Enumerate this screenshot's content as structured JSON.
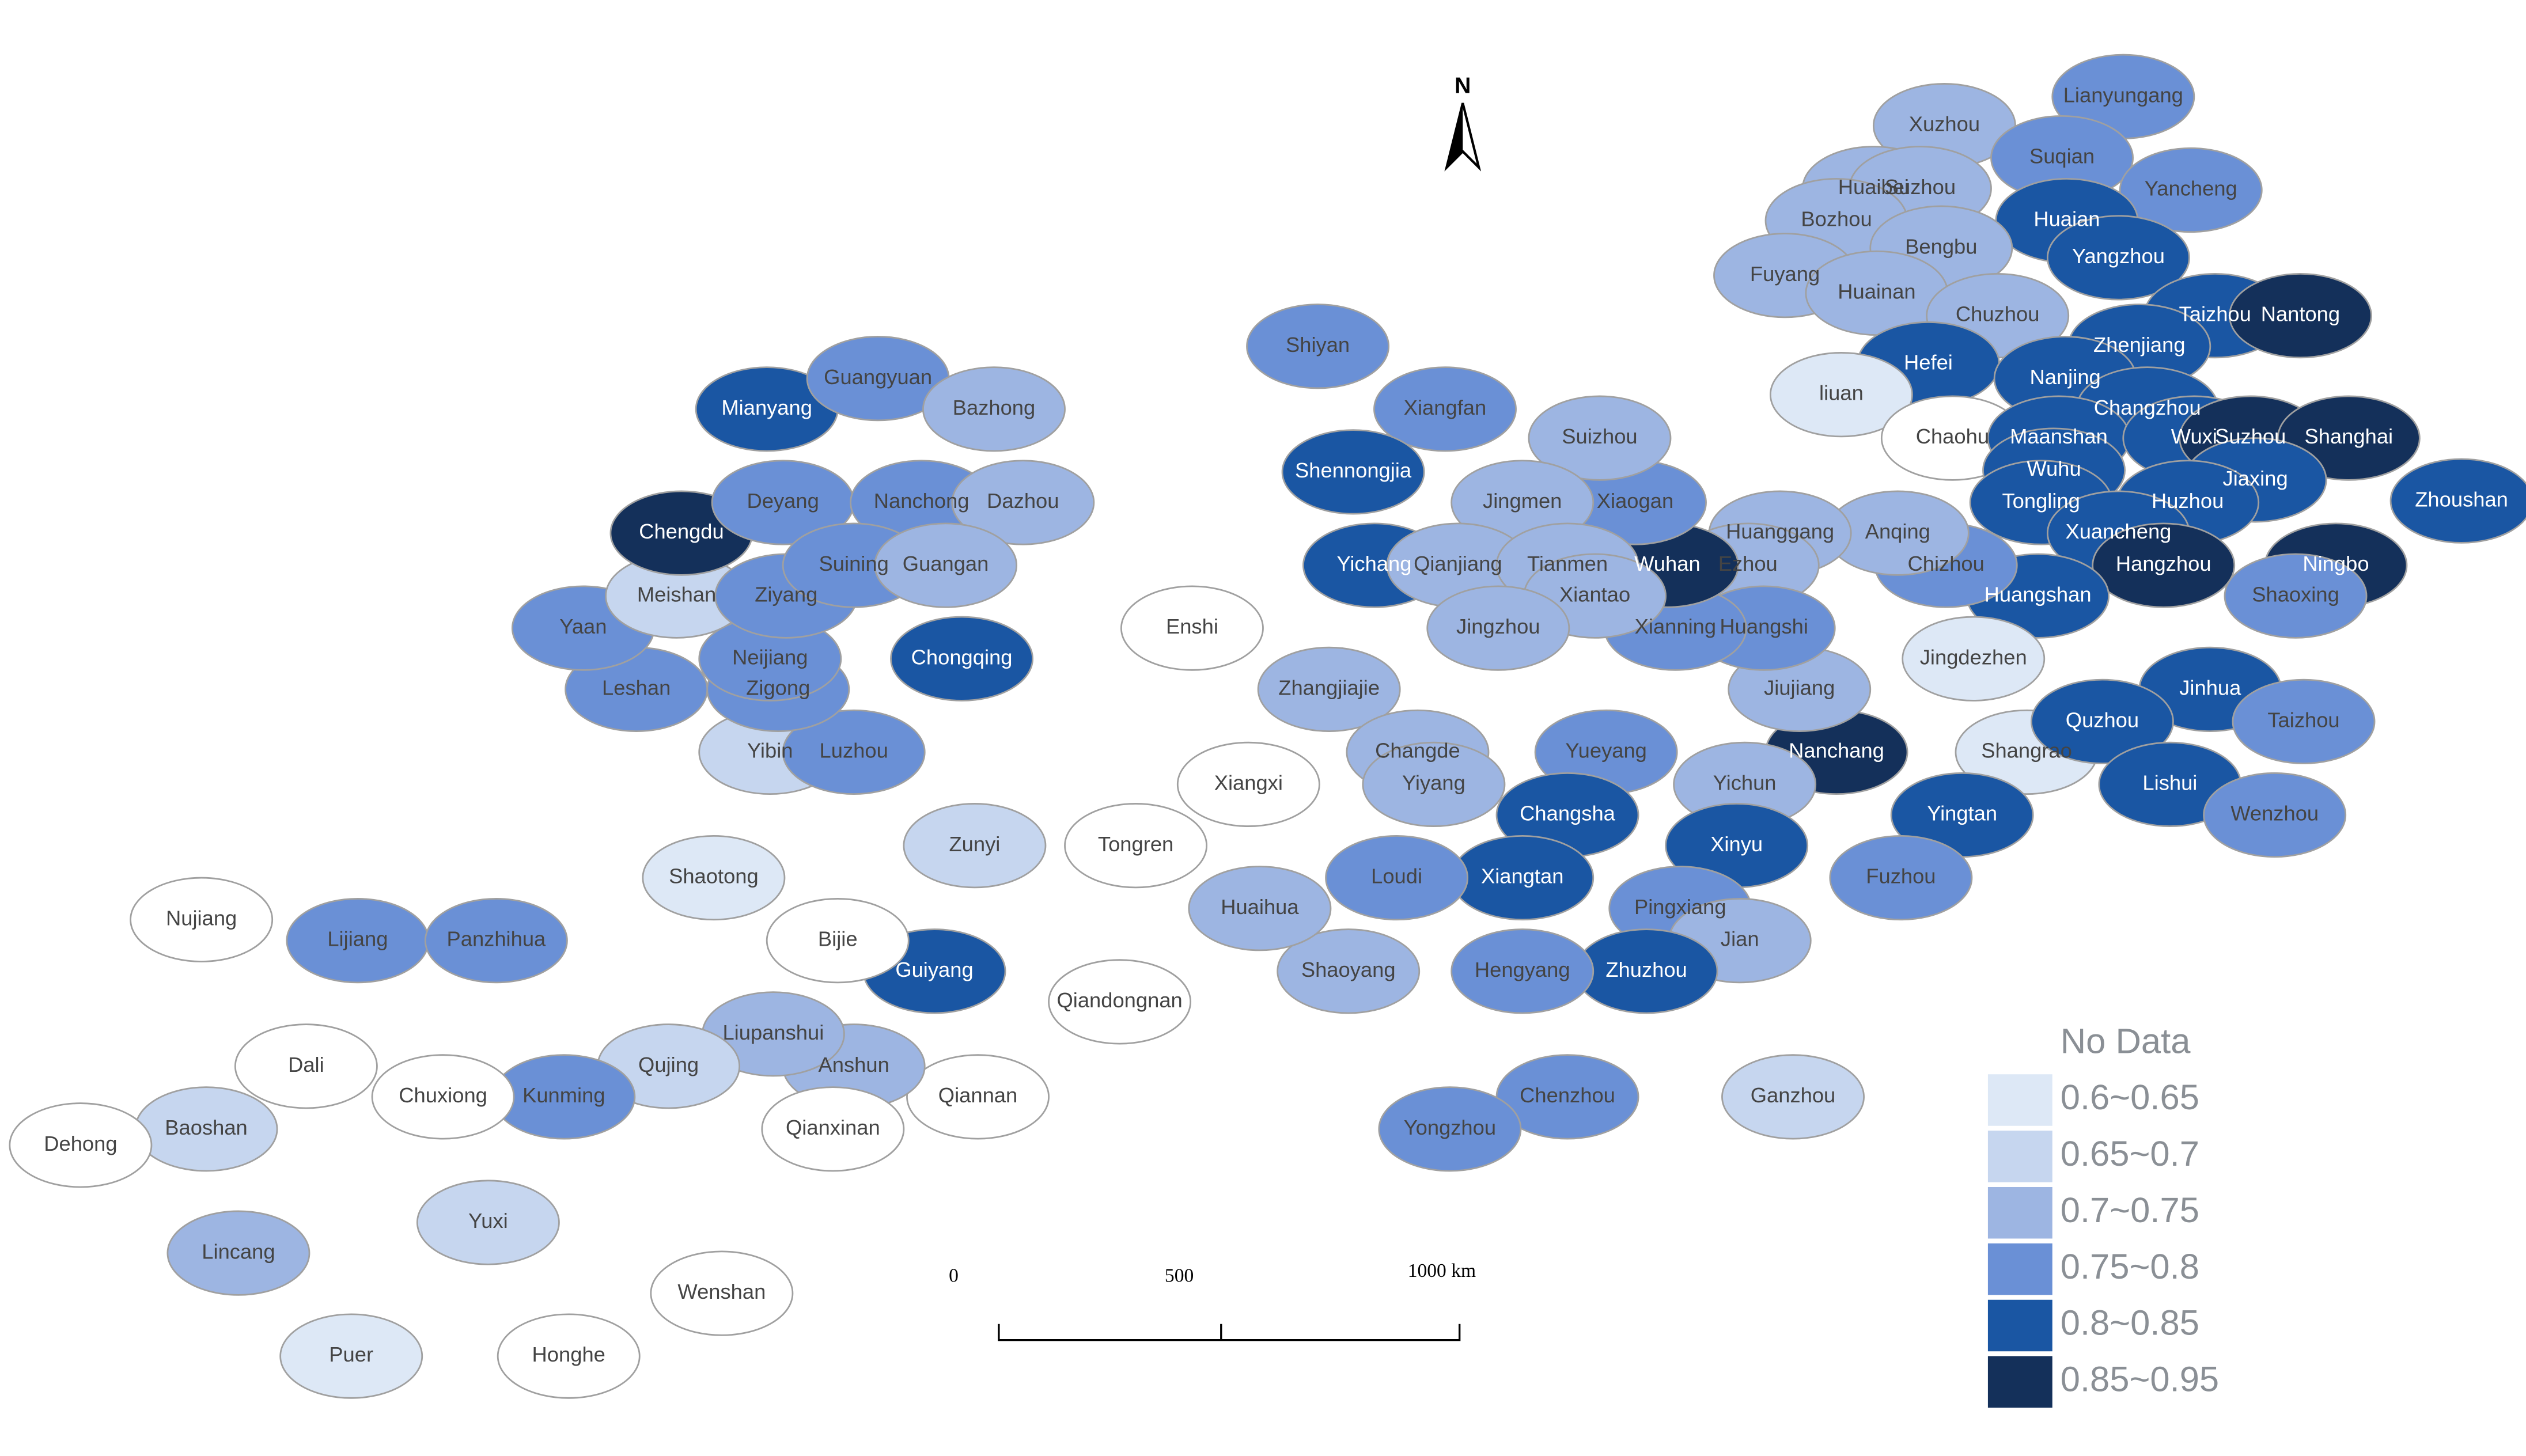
{
  "north": "N",
  "scale_bar": {
    "labels": [
      "0",
      "500",
      "1000 km"
    ]
  },
  "legend": {
    "items": [
      {
        "label": "No Data",
        "color": "#ffffff"
      },
      {
        "label": "0.6~0.65",
        "color": "#dde8f6"
      },
      {
        "label": "0.65~0.7",
        "color": "#c6d6ef"
      },
      {
        "label": "0.7~0.75",
        "color": "#9db5e2"
      },
      {
        "label": "0.75~0.8",
        "color": "#6a90d6"
      },
      {
        "label": "0.8~0.85",
        "color": "#1a56a3"
      },
      {
        "label": "0.85~0.95",
        "color": "#14305a"
      }
    ]
  },
  "regions": [
    {
      "name": "Xuzhou",
      "color": "#9db5e2"
    },
    {
      "name": "Lianyungang",
      "color": "#6a90d6"
    },
    {
      "name": "Suqian",
      "color": "#6a90d6"
    },
    {
      "name": "Huaibei",
      "color": "#9db5e2"
    },
    {
      "name": "Suzhou",
      "color": "#9db5e2"
    },
    {
      "name": "Yancheng",
      "color": "#6a90d6"
    },
    {
      "name": "Bozhou",
      "color": "#9db5e2"
    },
    {
      "name": "Huaian",
      "color": "#1a56a3"
    },
    {
      "name": "Yangzhou",
      "color": "#1a56a3"
    },
    {
      "name": "Bengbu",
      "color": "#9db5e2"
    },
    {
      "name": "Fuyang",
      "color": "#9db5e2"
    },
    {
      "name": "Huainan",
      "color": "#9db5e2"
    },
    {
      "name": "Taizhou",
      "color": "#1a56a3"
    },
    {
      "name": "Nantong",
      "color": "#14305a"
    },
    {
      "name": "Chuzhou",
      "color": "#9db5e2"
    },
    {
      "name": "Hefei",
      "color": "#1a56a3"
    },
    {
      "name": "Zhenjiang",
      "color": "#1a56a3"
    },
    {
      "name": "Nanjing",
      "color": "#1a56a3"
    },
    {
      "name": "liuan",
      "color": "#dde8f6"
    },
    {
      "name": "Changzhou",
      "color": "#1a56a3"
    },
    {
      "name": "Chaohu",
      "color": "#ffffff"
    },
    {
      "name": "Maanshan",
      "color": "#1a56a3"
    },
    {
      "name": "Wuxi",
      "color": "#1a56a3"
    },
    {
      "name": "Suzhou",
      "color": "#14305a"
    },
    {
      "name": "Shanghai",
      "color": "#14305a"
    },
    {
      "name": "Zhoushan",
      "color": "#1a56a3"
    },
    {
      "name": "Wuhu",
      "color": "#1a56a3"
    },
    {
      "name": "Jiaxing",
      "color": "#1a56a3"
    },
    {
      "name": "Tongling",
      "color": "#1a56a3"
    },
    {
      "name": "Huzhou",
      "color": "#1a56a3"
    },
    {
      "name": "Xuancheng",
      "color": "#1a56a3"
    },
    {
      "name": "Hangzhou",
      "color": "#14305a"
    },
    {
      "name": "Ningbo",
      "color": "#14305a"
    },
    {
      "name": "Huangshan",
      "color": "#1a56a3"
    },
    {
      "name": "Shaoxing",
      "color": "#6a90d6"
    },
    {
      "name": "Chizhou",
      "color": "#6a90d6"
    },
    {
      "name": "Anqing",
      "color": "#9db5e2"
    },
    {
      "name": "Jingdezhen",
      "color": "#dde8f6"
    },
    {
      "name": "Shangrao",
      "color": "#dde8f6"
    },
    {
      "name": "Jinhua",
      "color": "#1a56a3"
    },
    {
      "name": "Quzhou",
      "color": "#1a56a3"
    },
    {
      "name": "Taizhou",
      "color": "#6a90d6"
    },
    {
      "name": "Lishui",
      "color": "#1a56a3"
    },
    {
      "name": "Wenzhou",
      "color": "#6a90d6"
    },
    {
      "name": "Yingtan",
      "color": "#1a56a3"
    },
    {
      "name": "Nanchang",
      "color": "#14305a"
    },
    {
      "name": "Jiujiang",
      "color": "#9db5e2"
    },
    {
      "name": "Yichun",
      "color": "#9db5e2"
    },
    {
      "name": "Xinyu",
      "color": "#1a56a3"
    },
    {
      "name": "Fuzhou",
      "color": "#6a90d6"
    },
    {
      "name": "Pingxiang",
      "color": "#6a90d6"
    },
    {
      "name": "Jian",
      "color": "#9db5e2"
    },
    {
      "name": "Ganzhou",
      "color": "#c6d6ef"
    },
    {
      "name": "Huanggang",
      "color": "#9db5e2"
    },
    {
      "name": "Ezhou",
      "color": "#9db5e2"
    },
    {
      "name": "Huangshi",
      "color": "#6a90d6"
    },
    {
      "name": "Xianning",
      "color": "#6a90d6"
    },
    {
      "name": "Wuhan",
      "color": "#14305a"
    },
    {
      "name": "Xiaogan",
      "color": "#6a90d6"
    },
    {
      "name": "Suizhou",
      "color": "#9db5e2"
    },
    {
      "name": "Jingmen",
      "color": "#9db5e2"
    },
    {
      "name": "Xiangfan",
      "color": "#6a90d6"
    },
    {
      "name": "Shiyan",
      "color": "#6a90d6"
    },
    {
      "name": "Shennongjia",
      "color": "#1a56a3"
    },
    {
      "name": "Yichang",
      "color": "#1a56a3"
    },
    {
      "name": "Qianjiang",
      "color": "#9db5e2"
    },
    {
      "name": "Tianmen",
      "color": "#9db5e2"
    },
    {
      "name": "Xiantao",
      "color": "#9db5e2"
    },
    {
      "name": "Jingzhou",
      "color": "#9db5e2"
    },
    {
      "name": "Enshi",
      "color": "#ffffff"
    },
    {
      "name": "Zhangjiajie",
      "color": "#9db5e2"
    },
    {
      "name": "Changde",
      "color": "#9db5e2"
    },
    {
      "name": "Yiyang",
      "color": "#9db5e2"
    },
    {
      "name": "Yueyang",
      "color": "#6a90d6"
    },
    {
      "name": "Changsha",
      "color": "#1a56a3"
    },
    {
      "name": "Xiangtan",
      "color": "#1a56a3"
    },
    {
      "name": "Zhuzhou",
      "color": "#1a56a3"
    },
    {
      "name": "Loudi",
      "color": "#6a90d6"
    },
    {
      "name": "Hengyang",
      "color": "#6a90d6"
    },
    {
      "name": "Shaoyang",
      "color": "#9db5e2"
    },
    {
      "name": "Huaihua",
      "color": "#9db5e2"
    },
    {
      "name": "Chenzhou",
      "color": "#6a90d6"
    },
    {
      "name": "Yongzhou",
      "color": "#6a90d6"
    },
    {
      "name": "Xiangxi",
      "color": "#ffffff"
    },
    {
      "name": "Tongren",
      "color": "#ffffff"
    },
    {
      "name": "Zunyi",
      "color": "#c6d6ef"
    },
    {
      "name": "Chongqing",
      "color": "#1a56a3"
    },
    {
      "name": "Guiyang",
      "color": "#1a56a3"
    },
    {
      "name": "Bijie",
      "color": "#ffffff"
    },
    {
      "name": "Qiandongnan",
      "color": "#ffffff"
    },
    {
      "name": "Qiannan",
      "color": "#ffffff"
    },
    {
      "name": "Anshun",
      "color": "#9db5e2"
    },
    {
      "name": "Liupanshui",
      "color": "#9db5e2"
    },
    {
      "name": "Qianxinan",
      "color": "#ffffff"
    },
    {
      "name": "Shaotong",
      "color": "#dde8f6"
    },
    {
      "name": "Qujing",
      "color": "#c6d6ef"
    },
    {
      "name": "Kunming",
      "color": "#6a90d6"
    },
    {
      "name": "Yuxi",
      "color": "#c6d6ef"
    },
    {
      "name": "Wenshan",
      "color": "#ffffff"
    },
    {
      "name": "Honghe",
      "color": "#ffffff"
    },
    {
      "name": "Puer",
      "color": "#dde8f6"
    },
    {
      "name": "Lincang",
      "color": "#9db5e2"
    },
    {
      "name": "Baoshan",
      "color": "#c6d6ef"
    },
    {
      "name": "Dehong",
      "color": "#ffffff"
    },
    {
      "name": "Dali",
      "color": "#ffffff"
    },
    {
      "name": "Chuxiong",
      "color": "#ffffff"
    },
    {
      "name": "Lijiang",
      "color": "#6a90d6"
    },
    {
      "name": "Panzhihua",
      "color": "#6a90d6"
    },
    {
      "name": "Nujiang",
      "color": "#ffffff"
    },
    {
      "name": "Yibin",
      "color": "#c6d6ef"
    },
    {
      "name": "Luzhou",
      "color": "#6a90d6"
    },
    {
      "name": "Zigong",
      "color": "#6a90d6"
    },
    {
      "name": "Neijiang",
      "color": "#6a90d6"
    },
    {
      "name": "Leshan",
      "color": "#6a90d6"
    },
    {
      "name": "Yaan",
      "color": "#6a90d6"
    },
    {
      "name": "Meishan",
      "color": "#c6d6ef"
    },
    {
      "name": "Ziyang",
      "color": "#6a90d6"
    },
    {
      "name": "Chengdu",
      "color": "#14305a"
    },
    {
      "name": "Deyang",
      "color": "#6a90d6"
    },
    {
      "name": "Mianyang",
      "color": "#1a56a3"
    },
    {
      "name": "Guangyuan",
      "color": "#6a90d6"
    },
    {
      "name": "Bazhong",
      "color": "#9db5e2"
    },
    {
      "name": "Nanchong",
      "color": "#6a90d6"
    },
    {
      "name": "Dazhou",
      "color": "#9db5e2"
    },
    {
      "name": "Suining",
      "color": "#6a90d6"
    },
    {
      "name": "Guangan",
      "color": "#9db5e2"
    }
  ]
}
